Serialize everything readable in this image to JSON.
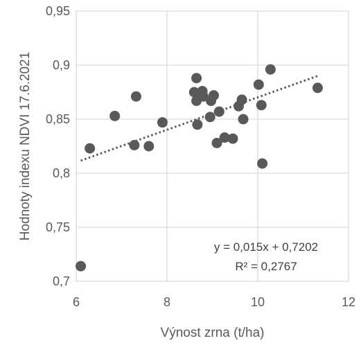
{
  "chart_data": {
    "type": "scatter",
    "xlabel": "Výnost zrna (t/ha)",
    "ylabel": "Hodnoty indexu NDVI 17.6.2021",
    "xlim": [
      6,
      12
    ],
    "ylim": [
      0.7,
      0.95
    ],
    "x_ticks": [
      6,
      8,
      10,
      12
    ],
    "x_tick_labels": [
      "6",
      "8",
      "10",
      "12"
    ],
    "y_ticks": [
      0.7,
      0.75,
      0.8,
      0.85,
      0.9,
      0.95
    ],
    "y_tick_labels": [
      "0,7",
      "0,75",
      "0,8",
      "0,85",
      "0,9",
      "0,95"
    ],
    "grid": true,
    "marker_color": "#595959",
    "trendline": {
      "slope": 0.015,
      "intercept": 0.7202,
      "x_range": [
        6.1,
        11.35
      ],
      "color": "#595959",
      "style": "dotted"
    },
    "equation_text": "y = 0,015x + 0,7202",
    "r2_text": "R² = 0,2767",
    "points": [
      {
        "x": 6.1,
        "y": 0.714
      },
      {
        "x": 6.3,
        "y": 0.823
      },
      {
        "x": 6.85,
        "y": 0.853
      },
      {
        "x": 7.28,
        "y": 0.826
      },
      {
        "x": 7.32,
        "y": 0.871
      },
      {
        "x": 7.6,
        "y": 0.825
      },
      {
        "x": 7.9,
        "y": 0.847
      },
      {
        "x": 8.6,
        "y": 0.875
      },
      {
        "x": 8.65,
        "y": 0.888
      },
      {
        "x": 8.65,
        "y": 0.867
      },
      {
        "x": 8.67,
        "y": 0.845
      },
      {
        "x": 8.78,
        "y": 0.876
      },
      {
        "x": 8.8,
        "y": 0.871
      },
      {
        "x": 8.95,
        "y": 0.852
      },
      {
        "x": 8.97,
        "y": 0.867
      },
      {
        "x": 9.03,
        "y": 0.872
      },
      {
        "x": 9.1,
        "y": 0.828
      },
      {
        "x": 9.15,
        "y": 0.857
      },
      {
        "x": 9.27,
        "y": 0.833
      },
      {
        "x": 9.45,
        "y": 0.832
      },
      {
        "x": 9.58,
        "y": 0.862
      },
      {
        "x": 9.65,
        "y": 0.868
      },
      {
        "x": 9.68,
        "y": 0.85
      },
      {
        "x": 10.02,
        "y": 0.882
      },
      {
        "x": 10.08,
        "y": 0.863
      },
      {
        "x": 10.1,
        "y": 0.809
      },
      {
        "x": 10.28,
        "y": 0.896
      },
      {
        "x": 11.32,
        "y": 0.879
      }
    ]
  }
}
